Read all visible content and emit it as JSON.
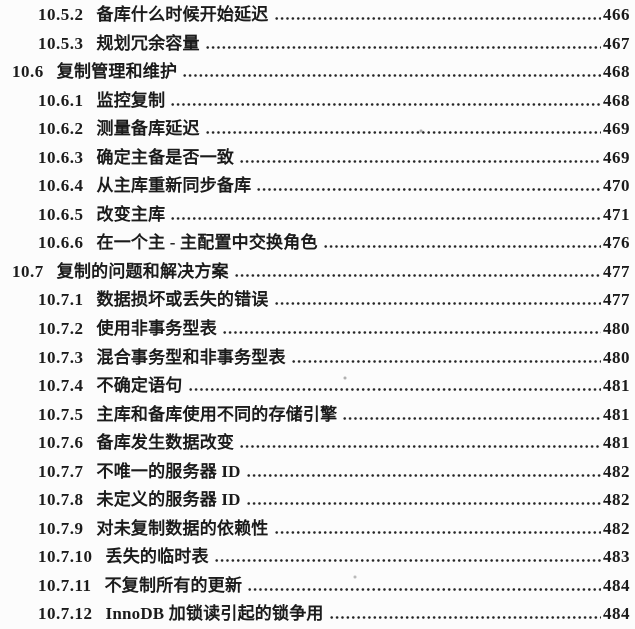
{
  "page": {
    "kind": "scanned-book-toc",
    "background_color": "#fcfcfc",
    "text_color": "#1b1b1b",
    "dot_leader_color": "#262626"
  },
  "toc": {
    "entries": [
      {
        "num": "10.5.2",
        "title": "备库什么时候开始延迟",
        "page": "466",
        "level": 2
      },
      {
        "num": "10.5.3",
        "title": "规划冗余容量",
        "page": "467",
        "level": 2
      },
      {
        "num": "10.6",
        "title": "复制管理和维护",
        "page": "468",
        "level": 1
      },
      {
        "num": "10.6.1",
        "title": "监控复制",
        "page": "468",
        "level": 2
      },
      {
        "num": "10.6.2",
        "title": "测量备库延迟",
        "page": "469",
        "level": 2
      },
      {
        "num": "10.6.3",
        "title": "确定主备是否一致",
        "page": "469",
        "level": 2
      },
      {
        "num": "10.6.4",
        "title": "从主库重新同步备库",
        "page": "470",
        "level": 2
      },
      {
        "num": "10.6.5",
        "title": "改变主库",
        "page": "471",
        "level": 2
      },
      {
        "num": "10.6.6",
        "title": "在一个主 - 主配置中交换角色",
        "page": "476",
        "level": 2
      },
      {
        "num": "10.7",
        "title": "复制的问题和解决方案",
        "page": "477",
        "level": 1
      },
      {
        "num": "10.7.1",
        "title": "数据损坏或丢失的错误",
        "page": "477",
        "level": 2
      },
      {
        "num": "10.7.2",
        "title": "使用非事务型表",
        "page": "480",
        "level": 2
      },
      {
        "num": "10.7.3",
        "title": "混合事务型和非事务型表",
        "page": "480",
        "level": 2
      },
      {
        "num": "10.7.4",
        "title": "不确定语句",
        "page": "481",
        "level": 2
      },
      {
        "num": "10.7.5",
        "title": "主库和备库使用不同的存储引擎",
        "page": "481",
        "level": 2
      },
      {
        "num": "10.7.6",
        "title": "备库发生数据改变",
        "page": "481",
        "level": 2
      },
      {
        "num": "10.7.7",
        "title": "不唯一的服务器 ID",
        "page": "482",
        "level": 2
      },
      {
        "num": "10.7.8",
        "title": "未定义的服务器 ID",
        "page": "482",
        "level": 2
      },
      {
        "num": "10.7.9",
        "title": "对未复制数据的依赖性",
        "page": "482",
        "level": 2
      },
      {
        "num": "10.7.10",
        "title": "丢失的临时表",
        "page": "483",
        "level": 2
      },
      {
        "num": "10.7.11",
        "title": "不复制所有的更新",
        "page": "484",
        "level": 2
      },
      {
        "num": "10.7.12",
        "title": "InnoDB 加锁读引起的锁争用",
        "page": "484",
        "level": 2
      }
    ]
  }
}
